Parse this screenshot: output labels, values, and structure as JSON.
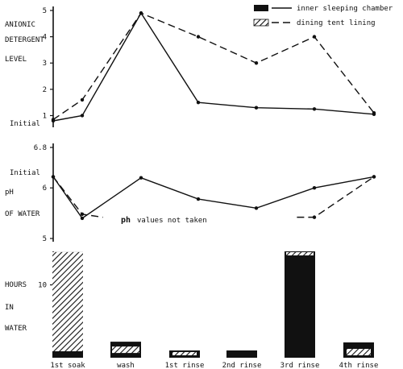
{
  "legend": {
    "solid_label": "inner sleeping chamber",
    "dashed_label": "dining tent lining"
  },
  "chart_data": [
    {
      "type": "line",
      "ylabel_lines": [
        "ANIONIC",
        "DETERGENT",
        "LEVEL"
      ],
      "ylim": [
        0.8,
        5
      ],
      "ticks": [
        {
          "value": 5,
          "label": "5"
        },
        {
          "value": 4,
          "label": "4"
        },
        {
          "value": 3,
          "label": "3"
        },
        {
          "value": 2,
          "label": "2"
        },
        {
          "value": 1,
          "label": "1"
        }
      ],
      "initial_label": "Initial",
      "series": [
        {
          "name": "inner sleeping chamber",
          "style": "solid",
          "x": [
            0,
            1,
            2,
            3,
            4,
            5,
            6
          ],
          "values": [
            0.8,
            1.0,
            4.9,
            1.5,
            1.3,
            1.25,
            1.05
          ]
        },
        {
          "name": "dining tent lining",
          "style": "dashed",
          "x": [
            0,
            1,
            2,
            3,
            4,
            5,
            6
          ],
          "values": [
            0.85,
            1.6,
            4.9,
            4.0,
            3.0,
            4.0,
            1.1
          ]
        }
      ]
    },
    {
      "type": "line",
      "ylabel_lines": [
        "pH",
        "OF WATER"
      ],
      "ylim": [
        5,
        6.8
      ],
      "ticks": [
        {
          "value": 6.8,
          "label": "6.8"
        },
        {
          "value": 6,
          "label": "6"
        },
        {
          "value": 5,
          "label": "5"
        }
      ],
      "initial_label": "Initial",
      "annotation": {
        "prefix": "ph",
        "text": "values not taken"
      },
      "series": [
        {
          "name": "inner sleeping chamber",
          "style": "solid",
          "x": [
            0,
            1,
            2,
            3,
            4,
            5,
            6
          ],
          "values": [
            6.22,
            5.4,
            6.2,
            5.78,
            5.6,
            6.0,
            6.22
          ]
        },
        {
          "name": "dining tent lining",
          "style": "dashed",
          "segments": [
            {
              "x": [
                0,
                1,
                1.35
              ],
              "values": [
                6.22,
                5.48,
                5.42
              ]
            },
            {
              "x": [
                4.7,
                5.0,
                6.0
              ],
              "values": [
                5.42,
                5.42,
                6.22
              ]
            }
          ]
        }
      ]
    },
    {
      "type": "bar",
      "ylabel_lines": [
        "HOURS",
        "IN",
        "WATER"
      ],
      "ylim": [
        0,
        14
      ],
      "ticks": [
        {
          "value": 10,
          "label": "10"
        }
      ],
      "categories": [
        "1st soak",
        "wash",
        "1st rinse",
        "2nd rinse",
        "3rd rinse",
        "4th rinse"
      ],
      "values": [
        14.5,
        2.2,
        1.0,
        1.0,
        14.6,
        2.1
      ],
      "fill": "#111111"
    }
  ]
}
